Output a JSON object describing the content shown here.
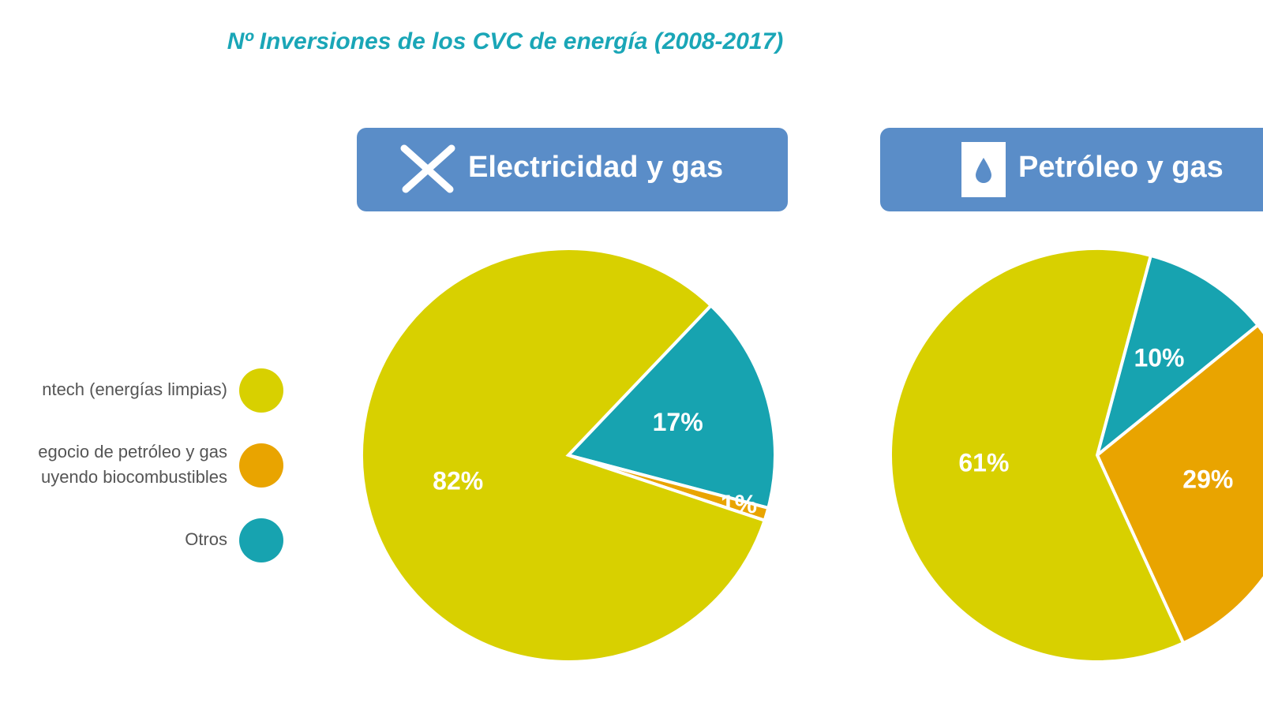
{
  "title": "Nº Inversiones de los CVC de energía (2008-2017)",
  "legend": [
    [
      "ntech (energías limpias)"
    ],
    [
      "egocio de petróleo y gas",
      "uyendo biocombustibles"
    ],
    [
      "Otros"
    ]
  ],
  "chart_data": [
    {
      "type": "pie",
      "title": "Electricidad y gas",
      "values": [
        82,
        1,
        17
      ],
      "value_labels": [
        "82%",
        "1%",
        "17%"
      ],
      "colors": [
        "#d8d000",
        "#e9a400",
        "#17a3b0"
      ]
    },
    {
      "type": "pie",
      "title": "Petróleo y gas",
      "values": [
        61,
        29,
        10
      ],
      "value_labels": [
        "61%",
        "29%",
        "10%"
      ],
      "colors": [
        "#d8d000",
        "#e9a400",
        "#17a3b0"
      ]
    }
  ]
}
